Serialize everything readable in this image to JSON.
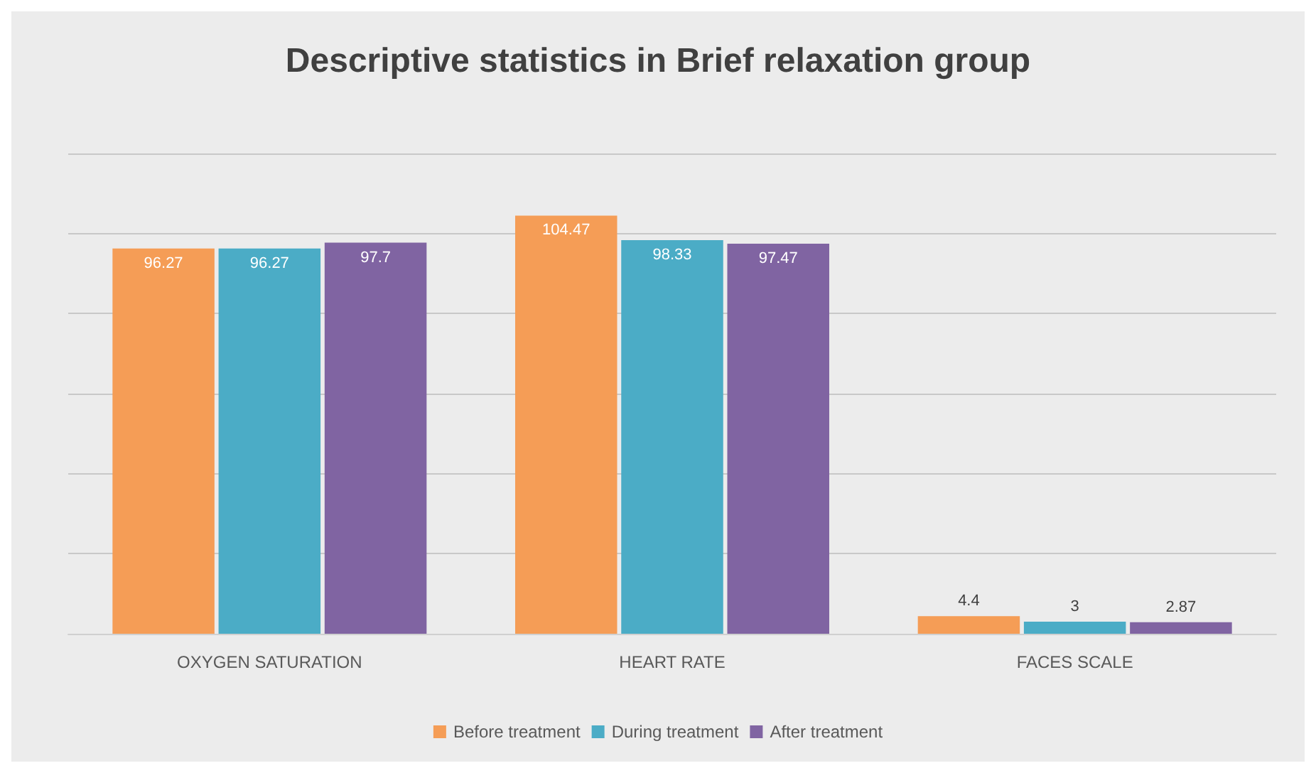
{
  "chart_data": {
    "type": "bar",
    "title": "Descriptive statistics in Brief relaxation group",
    "categories": [
      "OXYGEN SATURATION",
      "HEART RATE",
      "FACES SCALE"
    ],
    "series": [
      {
        "name": "Before treatment",
        "color": "#f59d56",
        "values": [
          96.27,
          104.47,
          4.4
        ]
      },
      {
        "name": "During treatment",
        "color": "#4bacc6",
        "values": [
          96.27,
          98.33,
          3
        ]
      },
      {
        "name": "After treatment",
        "color": "#8064a2",
        "values": [
          97.7,
          97.47,
          2.87
        ]
      }
    ],
    "ylim": [
      0,
      120
    ],
    "yticks": [
      {
        "value": 0,
        "label": null
      },
      {
        "value": 20,
        "label": null
      },
      {
        "value": 40,
        "label": null
      },
      {
        "value": 60,
        "label": null
      },
      {
        "value": 80,
        "label": null
      },
      {
        "value": 100,
        "label": null
      },
      {
        "value": 120,
        "label": null
      }
    ],
    "tick_labels": "x",
    "grid": "y",
    "legend": "bottom",
    "data_labels": true
  }
}
